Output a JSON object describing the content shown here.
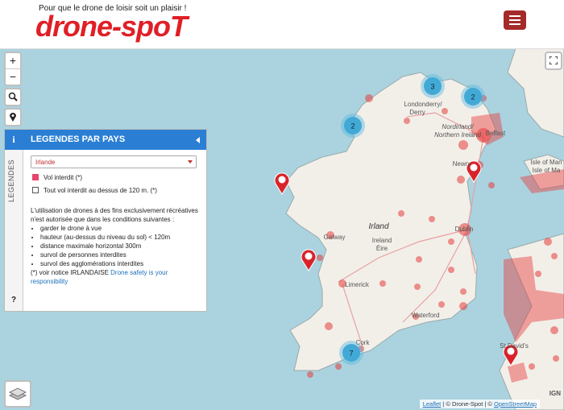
{
  "header": {
    "tagline": "Pour que le drone de loisir soit un plaisir !",
    "logo": "drone-spoT"
  },
  "map": {
    "zoom_in": "+",
    "zoom_out": "−",
    "labels": [
      "Londonderry/",
      "Derry",
      "Nordirland/",
      "Northern Ireland",
      "Belfast",
      "Newry",
      "Isle of Man",
      "Isle of Ma",
      "Irland",
      "Ireland",
      "Éire",
      "Dublin",
      "Galway",
      "Limerick",
      "Waterford",
      "Cork",
      "St David's"
    ],
    "clusters": [
      3,
      2,
      2,
      7
    ],
    "attribution": {
      "leaflet": "Leaflet",
      "dronespot": "© Drone-Spot",
      "osm": "OpenStreetMap",
      "ign": "IGN"
    }
  },
  "legend": {
    "side_tab": "LEGENDES",
    "info": "i",
    "help": "?",
    "title": "LEGENDES PAR PAYS",
    "country": "Irlande",
    "items": [
      "Vol interdit (*)",
      "Tout vol interdit au dessus de 120 m. (*)"
    ],
    "intro": "L'utilisation de drones à des fins exclusivement récréatives n'est autorisée que dans les conditions suivantes :",
    "rules": [
      "garder le drone à vue",
      "hauteur (au-dessus du niveau du sol) < 120m",
      "distance maximale horizontal 300m",
      "survol de personnes interdites",
      "survol des agglomérations interdites"
    ],
    "notice": "(*) voir notice IRLANDAISE",
    "link": "Drone safety is your responsibility"
  }
}
